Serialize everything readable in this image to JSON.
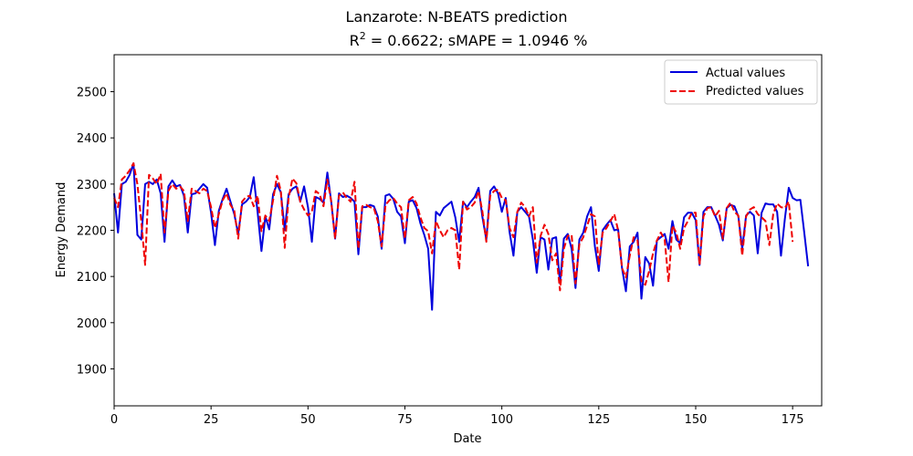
{
  "chart_data": {
    "type": "line",
    "title": "Lanzarote: N-BEATS prediction",
    "subtitle": {
      "r_label": "R",
      "r_exp": "2",
      "r_value": " = 0.6622; sMAPE = 1.0946 %"
    },
    "xlabel": "Date",
    "ylabel": "Energy Demand",
    "xlim": [
      0,
      182.5
    ],
    "ylim": [
      1820,
      2580
    ],
    "xticks": [
      0,
      25,
      50,
      75,
      100,
      125,
      150,
      175
    ],
    "yticks": [
      1900,
      2000,
      2100,
      2200,
      2300,
      2400,
      2500
    ],
    "legend_position": "top-right",
    "series": [
      {
        "name": "Actual values",
        "color": "#0000dd",
        "style": "solid",
        "values": [
          2280,
          2195,
          2300,
          2305,
          2320,
          2345,
          2190,
          2180,
          2300,
          2305,
          2300,
          2310,
          2280,
          2175,
          2295,
          2308,
          2295,
          2298,
          2275,
          2195,
          2278,
          2280,
          2290,
          2300,
          2292,
          2238,
          2168,
          2242,
          2268,
          2290,
          2262,
          2235,
          2192,
          2256,
          2262,
          2272,
          2315,
          2240,
          2155,
          2230,
          2202,
          2278,
          2300,
          2282,
          2200,
          2278,
          2290,
          2295,
          2262,
          2295,
          2250,
          2175,
          2272,
          2268,
          2260,
          2325,
          2262,
          2182,
          2280,
          2272,
          2275,
          2270,
          2262,
          2148,
          2250,
          2250,
          2255,
          2252,
          2230,
          2160,
          2275,
          2278,
          2268,
          2240,
          2230,
          2172,
          2262,
          2265,
          2248,
          2215,
          2190,
          2160,
          2028,
          2240,
          2232,
          2248,
          2255,
          2262,
          2228,
          2175,
          2262,
          2250,
          2262,
          2272,
          2292,
          2228,
          2180,
          2285,
          2295,
          2280,
          2240,
          2270,
          2196,
          2145,
          2240,
          2250,
          2240,
          2230,
          2180,
          2108,
          2185,
          2180,
          2115,
          2182,
          2185,
          2085,
          2182,
          2192,
          2160,
          2075,
          2180,
          2195,
          2230,
          2250,
          2165,
          2112,
          2200,
          2212,
          2222,
          2200,
          2202,
          2118,
          2068,
          2165,
          2175,
          2195,
          2052,
          2142,
          2128,
          2080,
          2178,
          2185,
          2192,
          2160,
          2220,
          2180,
          2172,
          2228,
          2238,
          2238,
          2222,
          2125,
          2240,
          2250,
          2250,
          2232,
          2212,
          2178,
          2248,
          2255,
          2252,
          2230,
          2160,
          2232,
          2240,
          2232,
          2150,
          2238,
          2258,
          2256,
          2256,
          2240,
          2145,
          2225,
          2292,
          2270,
          2265,
          2266,
          2195,
          2122
        ]
      },
      {
        "name": "Predicted values",
        "color": "#ee0000",
        "style": "dashed",
        "values": [
          2270,
          2250,
          2310,
          2318,
          2330,
          2345,
          2300,
          2220,
          2125,
          2320,
          2312,
          2300,
          2322,
          2195,
          2285,
          2300,
          2290,
          2295,
          2285,
          2220,
          2290,
          2285,
          2280,
          2290,
          2285,
          2250,
          2205,
          2235,
          2265,
          2280,
          2255,
          2242,
          2182,
          2262,
          2272,
          2275,
          2252,
          2275,
          2198,
          2232,
          2220,
          2265,
          2318,
          2285,
          2162,
          2270,
          2312,
          2302,
          2262,
          2245,
          2232,
          2240,
          2285,
          2278,
          2252,
          2310,
          2262,
          2182,
          2275,
          2282,
          2270,
          2262,
          2305,
          2160,
          2252,
          2255,
          2250,
          2248,
          2220,
          2165,
          2255,
          2265,
          2270,
          2258,
          2250,
          2182,
          2265,
          2272,
          2258,
          2228,
          2205,
          2198,
          2150,
          2220,
          2200,
          2185,
          2200,
          2205,
          2200,
          2115,
          2262,
          2245,
          2250,
          2260,
          2285,
          2240,
          2175,
          2275,
          2285,
          2288,
          2270,
          2265,
          2205,
          2185,
          2240,
          2260,
          2250,
          2230,
          2250,
          2130,
          2188,
          2212,
          2192,
          2135,
          2150,
          2070,
          2160,
          2188,
          2190,
          2085,
          2170,
          2185,
          2210,
          2235,
          2230,
          2125,
          2195,
          2205,
          2220,
          2235,
          2200,
          2118,
          2098,
          2145,
          2185,
          2178,
          2090,
          2082,
          2112,
          2150,
          2178,
          2195,
          2180,
          2088,
          2210,
          2195,
          2160,
          2205,
          2220,
          2238,
          2238,
          2125,
          2230,
          2248,
          2250,
          2230,
          2242,
          2182,
          2248,
          2260,
          2240,
          2232,
          2145,
          2230,
          2245,
          2250,
          2235,
          2228,
          2220,
          2168,
          2235,
          2258,
          2250,
          2248,
          2262,
          2175
        ]
      }
    ]
  }
}
